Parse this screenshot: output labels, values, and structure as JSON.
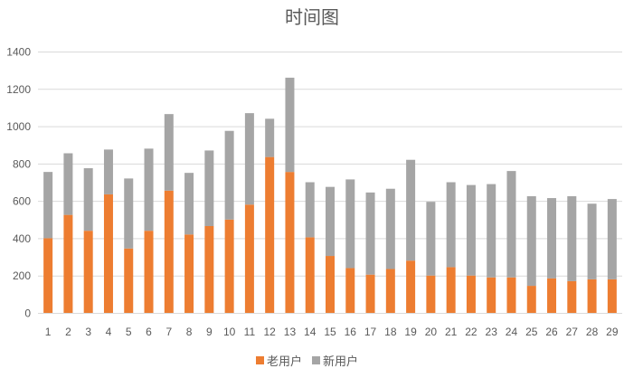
{
  "chart_data": {
    "type": "bar",
    "stacked": true,
    "title": "时间图",
    "xlabel": "",
    "ylabel": "",
    "ylim": [
      0,
      1400
    ],
    "yticks": [
      0,
      200,
      400,
      600,
      800,
      1000,
      1200,
      1400
    ],
    "grid": true,
    "legend_position": "bottom",
    "categories": [
      "1",
      "2",
      "3",
      "4",
      "5",
      "6",
      "7",
      "8",
      "9",
      "10",
      "11",
      "12",
      "13",
      "14",
      "15",
      "16",
      "17",
      "18",
      "19",
      "20",
      "21",
      "22",
      "23",
      "24",
      "25",
      "26",
      "27",
      "28",
      "29"
    ],
    "series": [
      {
        "name": "老用户",
        "color": "#ed7d31",
        "values": [
          400,
          525,
          440,
          635,
          345,
          440,
          655,
          420,
          465,
          500,
          580,
          835,
          755,
          405,
          305,
          240,
          205,
          235,
          280,
          200,
          245,
          200,
          190,
          190,
          145,
          185,
          170,
          180,
          180
        ]
      },
      {
        "name": "新用户",
        "color": "#a5a5a5",
        "values": [
          355,
          330,
          335,
          240,
          375,
          440,
          410,
          330,
          405,
          475,
          490,
          205,
          505,
          295,
          370,
          475,
          440,
          430,
          540,
          395,
          455,
          485,
          500,
          570,
          480,
          430,
          455,
          405,
          430
        ]
      }
    ]
  }
}
